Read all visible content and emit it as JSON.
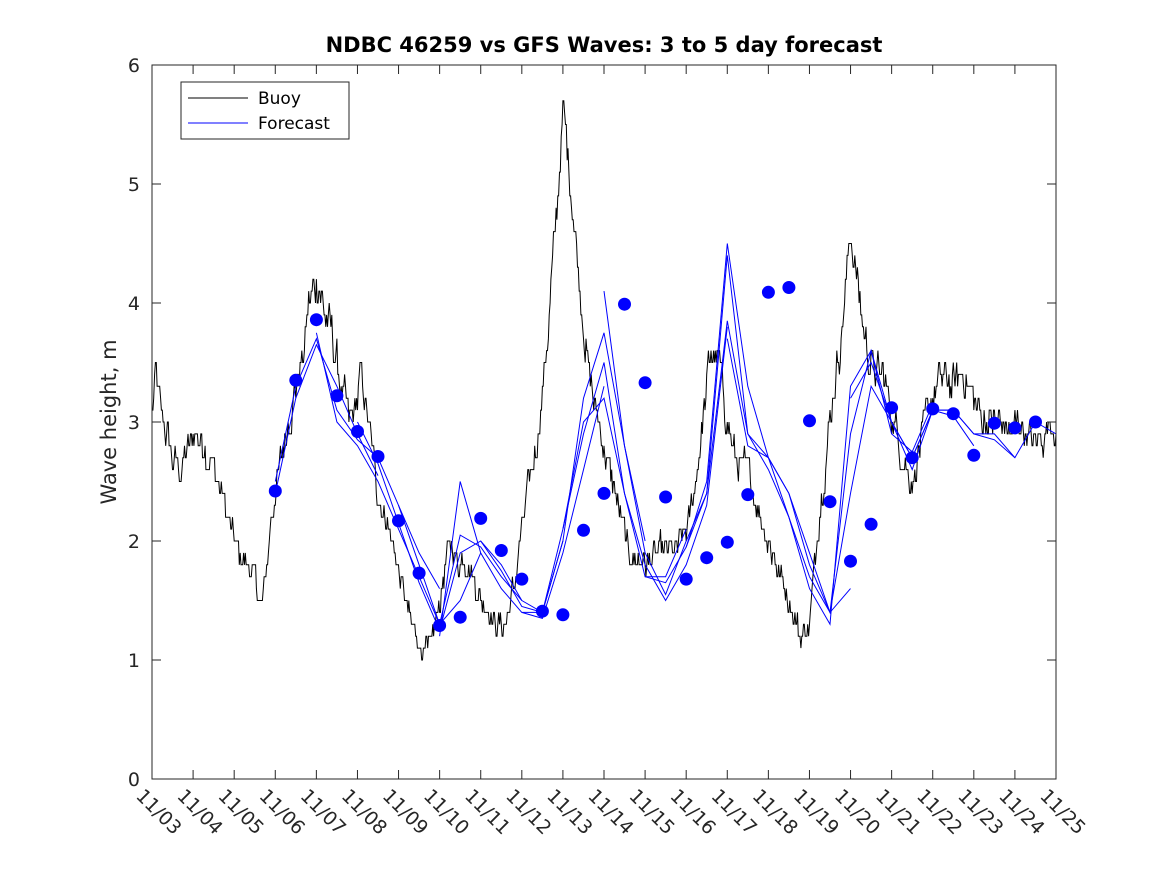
{
  "chart_data": {
    "type": "line",
    "title": "NDBC 46259 vs GFS Waves: 3 to 5 day forecast",
    "xlabel": "",
    "ylabel": "Wave height, m",
    "xlim": [
      0,
      22
    ],
    "ylim": [
      0,
      6
    ],
    "yticks": [
      0,
      1,
      2,
      3,
      4,
      5,
      6
    ],
    "xtick_labels": [
      "11/03",
      "11/04",
      "11/05",
      "11/06",
      "11/07",
      "11/08",
      "11/09",
      "11/10",
      "11/11",
      "11/12",
      "11/13",
      "11/14",
      "11/15",
      "11/16",
      "11/17",
      "11/18",
      "11/19",
      "11/20",
      "11/21",
      "11/22",
      "11/23",
      "11/24",
      "11/25"
    ],
    "x_units": "days since 11/03 00:00",
    "legend": {
      "position": "top-left",
      "entries": [
        "Buoy",
        "Forecast"
      ]
    },
    "colors": {
      "buoy": "#000000",
      "forecast": "#0000ff"
    },
    "buoy_anchors": {
      "x": [
        0,
        0.1,
        0.2,
        0.3,
        0.5,
        0.7,
        0.9,
        1.1,
        1.3,
        1.5,
        1.7,
        1.9,
        2.1,
        2.3,
        2.5,
        2.6,
        2.7,
        2.75,
        2.9,
        3.1,
        3.3,
        3.5,
        3.7,
        3.8,
        3.95,
        4.05,
        4.2,
        4.4,
        4.6,
        4.8,
        4.95,
        5.1,
        5.3,
        5.5,
        5.7,
        5.9,
        6.1,
        6.3,
        6.5,
        6.7,
        6.9,
        7.1,
        7.2,
        7.3,
        7.45,
        7.6,
        7.8,
        8.0,
        8.2,
        8.4,
        8.6,
        8.8,
        9.0,
        9.2,
        9.4,
        9.6,
        9.8,
        10.0,
        10.2,
        10.4,
        10.6,
        10.8,
        11.0,
        11.2,
        11.4,
        11.6,
        11.75,
        11.9,
        12.05,
        12.2,
        12.4,
        12.6,
        12.8,
        13.0,
        13.2,
        13.4,
        13.6,
        13.8,
        14.0,
        14.2,
        14.4,
        14.6,
        14.8,
        15.0,
        15.2,
        15.4,
        15.6,
        15.8,
        16.0,
        16.2,
        16.4,
        16.6,
        16.8,
        17.0,
        17.2,
        17.4,
        17.6,
        17.8,
        18.0,
        18.2,
        18.4,
        18.5,
        18.7,
        18.9,
        19.1,
        19.3,
        19.5,
        19.7,
        19.9,
        20.1,
        20.3,
        20.5,
        20.7,
        20.9,
        21.1,
        21.3,
        21.5,
        21.7,
        21.9,
        22.0
      ],
      "y": [
        3.1,
        3.4,
        3.1,
        3.0,
        2.7,
        2.6,
        2.8,
        2.9,
        2.8,
        2.6,
        2.4,
        2.1,
        1.9,
        1.8,
        1.7,
        1.5,
        1.5,
        1.6,
        2.2,
        2.6,
        3.0,
        3.3,
        3.6,
        4.0,
        4.1,
        4.2,
        3.9,
        3.7,
        3.3,
        3.0,
        3.1,
        3.4,
        2.9,
        2.4,
        2.2,
        1.9,
        1.6,
        1.3,
        1.15,
        1.05,
        1.3,
        1.7,
        1.9,
        2.0,
        1.8,
        1.9,
        1.7,
        1.5,
        1.4,
        1.3,
        1.3,
        1.6,
        2.1,
        2.5,
        2.9,
        3.6,
        4.5,
        5.6,
        5.0,
        4.2,
        3.5,
        3.1,
        2.8,
        2.5,
        2.2,
        1.9,
        1.85,
        1.85,
        1.8,
        1.85,
        1.9,
        1.9,
        1.95,
        2.1,
        2.4,
        3.0,
        3.6,
        3.5,
        3.0,
        2.7,
        2.6,
        2.5,
        2.2,
        2.0,
        1.8,
        1.6,
        1.4,
        1.2,
        1.3,
        2.1,
        2.7,
        3.3,
        3.8,
        4.6,
        4.1,
        3.6,
        3.4,
        3.4,
        3.1,
        2.8,
        2.6,
        2.5,
        2.8,
        3.1,
        3.3,
        3.4,
        3.3,
        3.4,
        3.3,
        3.1,
        3.0,
        3.0,
        3.0,
        2.9,
        3.0,
        2.9,
        2.8,
        2.9,
        3.0,
        3.0
      ]
    },
    "forecast_series": [
      {
        "name": "Forecast run 1",
        "x": [
          3.0,
          3.5,
          4.0,
          4.5,
          5.0,
          5.5
        ],
        "y": [
          2.4,
          3.2,
          3.65,
          3.3,
          2.9,
          2.55
        ]
      },
      {
        "name": "Forecast run 2",
        "x": [
          3.0,
          3.5,
          4.0,
          4.5,
          5.0,
          5.5,
          6.0,
          6.5,
          7.0
        ],
        "y": [
          2.5,
          3.3,
          3.7,
          3.1,
          2.85,
          2.7,
          2.3,
          1.9,
          1.6
        ]
      },
      {
        "name": "Forecast run 3",
        "x": [
          4.0,
          4.5,
          5.0,
          5.5,
          6.0,
          6.5,
          7.0,
          7.5,
          8.0
        ],
        "y": [
          3.75,
          3.0,
          2.8,
          2.5,
          2.1,
          1.7,
          1.3,
          1.5,
          1.9
        ]
      },
      {
        "name": "Forecast run 4",
        "x": [
          5.0,
          5.5,
          6.0,
          6.5,
          7.0,
          7.5,
          8.0,
          8.5,
          9.0
        ],
        "y": [
          3.0,
          2.65,
          2.15,
          1.65,
          1.25,
          1.9,
          2.0,
          1.8,
          1.5
        ]
      },
      {
        "name": "Forecast run 5",
        "x": [
          6.0,
          6.5,
          7.0,
          7.5,
          8.0,
          8.5,
          9.0,
          9.5,
          10.0
        ],
        "y": [
          2.3,
          1.8,
          1.3,
          2.05,
          1.95,
          1.7,
          1.5,
          1.4,
          2.0
        ]
      },
      {
        "name": "Forecast run 6",
        "x": [
          7.0,
          7.5,
          8.0,
          8.5,
          9.0,
          9.5,
          10.0,
          10.5,
          11.0
        ],
        "y": [
          1.2,
          2.5,
          1.9,
          1.6,
          1.4,
          1.35,
          1.9,
          2.6,
          3.3
        ]
      },
      {
        "name": "Forecast run 7",
        "x": [
          8.0,
          8.5,
          9.0,
          9.5,
          10.0,
          10.5,
          11.0,
          11.5,
          12.0
        ],
        "y": [
          2.0,
          1.75,
          1.45,
          1.4,
          2.0,
          3.2,
          3.75,
          2.8,
          2.0
        ]
      },
      {
        "name": "Forecast run 8",
        "x": [
          9.0,
          9.5,
          10.0,
          10.5,
          11.0,
          11.5,
          12.0,
          12.5,
          13.0
        ],
        "y": [
          1.4,
          1.4,
          2.1,
          2.9,
          3.5,
          2.4,
          1.7,
          1.7,
          2.1
        ]
      },
      {
        "name": "Forecast run 9",
        "x": [
          10.0,
          10.5,
          11.0,
          11.5,
          12.0,
          12.5,
          13.0,
          13.5,
          14.0
        ],
        "y": [
          2.1,
          3.0,
          3.2,
          2.4,
          1.8,
          1.5,
          1.8,
          2.3,
          3.8
        ]
      },
      {
        "name": "Forecast run 10",
        "x": [
          11.0,
          11.5,
          12.0,
          12.5,
          13.0,
          13.5,
          14.0,
          14.5,
          15.0
        ],
        "y": [
          4.1,
          2.8,
          1.9,
          1.55,
          2.0,
          2.4,
          4.4,
          2.9,
          2.6
        ]
      },
      {
        "name": "Forecast run 11",
        "x": [
          12.0,
          12.5,
          13.0,
          13.5,
          14.0,
          14.5,
          15.0,
          15.5,
          16.0
        ],
        "y": [
          1.7,
          1.65,
          1.95,
          2.5,
          4.5,
          3.3,
          2.7,
          2.2,
          1.7
        ]
      },
      {
        "name": "Forecast run 12",
        "x": [
          13.0,
          13.5,
          14.0,
          14.5,
          15.0,
          15.5,
          16.0,
          16.5,
          17.0
        ],
        "y": [
          1.95,
          2.4,
          3.85,
          2.9,
          2.7,
          2.4,
          1.9,
          1.4,
          1.6
        ]
      },
      {
        "name": "Forecast run 13",
        "x": [
          14.0,
          14.5,
          15.0,
          15.5,
          16.0,
          16.5,
          17.0,
          17.5,
          18.0
        ],
        "y": [
          3.7,
          2.8,
          2.7,
          2.4,
          1.8,
          1.4,
          2.4,
          3.3,
          3.0
        ]
      },
      {
        "name": "Forecast run 14",
        "x": [
          15.0,
          15.5,
          16.0,
          16.5,
          17.0,
          17.5,
          18.0,
          18.5,
          19.0
        ],
        "y": [
          2.6,
          2.2,
          1.6,
          1.3,
          3.3,
          3.6,
          2.9,
          2.75,
          3.15
        ]
      },
      {
        "name": "Forecast run 15",
        "x": [
          16.0,
          16.5,
          17.0,
          17.5,
          18.0,
          18.5,
          19.0,
          19.5,
          20.0
        ],
        "y": [
          1.7,
          1.4,
          2.9,
          3.6,
          3.0,
          2.7,
          3.1,
          3.05,
          2.8
        ]
      },
      {
        "name": "Forecast run 16",
        "x": [
          17.0,
          17.5,
          18.0,
          18.5,
          19.0,
          19.5,
          20.0,
          20.5,
          21.0
        ],
        "y": [
          3.2,
          3.5,
          3.0,
          2.7,
          3.1,
          3.1,
          2.9,
          2.9,
          2.7
        ]
      },
      {
        "name": "Forecast run 17",
        "x": [
          18.0,
          18.5,
          19.0,
          19.5,
          20.0,
          20.5,
          21.0,
          21.5,
          22.0
        ],
        "y": [
          3.0,
          2.6,
          3.1,
          3.1,
          2.9,
          2.85,
          2.7,
          3.0,
          2.9
        ]
      }
    ],
    "forecast_markers": {
      "x": [
        3.0,
        3.5,
        4.0,
        4.5,
        5.0,
        5.5,
        6.0,
        6.5,
        7.0,
        7.5,
        8.0,
        8.5,
        9.0,
        9.5,
        10.0,
        10.5,
        11.0,
        11.5,
        12.0,
        12.5,
        13.0,
        13.5,
        14.0,
        14.5,
        15.0,
        15.5,
        16.0,
        16.5,
        17.0,
        17.5,
        18.0,
        18.5,
        19.0,
        19.5,
        20.0,
        20.5,
        21.0,
        21.5
      ],
      "y": [
        2.42,
        3.35,
        3.86,
        3.22,
        2.92,
        2.71,
        2.17,
        1.73,
        1.29,
        1.36,
        2.19,
        1.92,
        1.68,
        1.41,
        1.38,
        2.09,
        2.4,
        3.99,
        3.33,
        2.37,
        1.68,
        1.86,
        1.99,
        2.39,
        4.09,
        4.13,
        3.01,
        2.33,
        1.83,
        2.14,
        3.12,
        2.7,
        3.11,
        3.07,
        2.72,
        2.99,
        2.95,
        3.0
      ]
    }
  }
}
